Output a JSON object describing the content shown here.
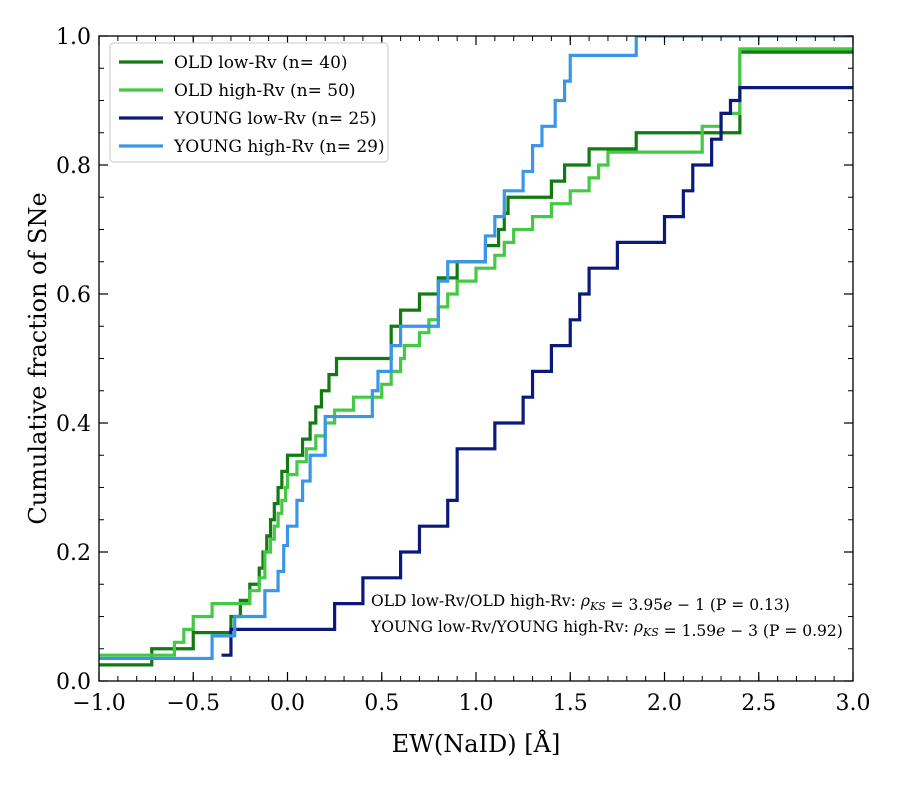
{
  "chart_data": {
    "type": "line",
    "xlabel": "EW(NaID) [Å]",
    "ylabel": "Cumulative fraction of SNe",
    "xlim": [
      -1.0,
      3.0
    ],
    "ylim": [
      0.0,
      1.0
    ],
    "xticks": [
      -1.0,
      -0.5,
      0.0,
      0.5,
      1.0,
      1.5,
      2.0,
      2.5,
      3.0
    ],
    "xtick_labels": [
      "−1.0",
      "−0.5",
      "0.0",
      "0.5",
      "1.0",
      "1.5",
      "2.0",
      "2.5",
      "3.0"
    ],
    "yticks": [
      0.0,
      0.2,
      0.4,
      0.6,
      0.8,
      1.0
    ],
    "ytick_labels": [
      "0.0",
      "0.2",
      "0.4",
      "0.6",
      "0.8",
      "1.0"
    ],
    "grid": false,
    "legend_position": "top-left",
    "series": [
      {
        "name": "OLD low-Rv (n= 40)",
        "color": "#117a11",
        "step_x": [
          -1.0,
          -0.72,
          -0.5,
          -0.3,
          -0.25,
          -0.2,
          -0.15,
          -0.13,
          -0.11,
          -0.09,
          -0.07,
          -0.05,
          -0.03,
          0.0,
          0.08,
          0.12,
          0.15,
          0.18,
          0.22,
          0.26,
          0.55,
          0.6,
          0.7,
          0.8,
          0.9,
          1.05,
          1.12,
          1.15,
          1.17,
          1.4,
          1.47,
          1.6,
          1.85,
          2.4
        ],
        "step_y": [
          0.025,
          0.05,
          0.075,
          0.1,
          0.125,
          0.15,
          0.175,
          0.2,
          0.225,
          0.25,
          0.275,
          0.3,
          0.325,
          0.35,
          0.375,
          0.4,
          0.425,
          0.45,
          0.475,
          0.5,
          0.55,
          0.575,
          0.6,
          0.625,
          0.65,
          0.675,
          0.7,
          0.725,
          0.75,
          0.775,
          0.8,
          0.825,
          0.85,
          0.875
        ],
        "y_end": 0.975
      },
      {
        "name": "OLD high-Rv (n= 50)",
        "color": "#44c944",
        "step_x": [
          -1.0,
          -0.6,
          -0.55,
          -0.5,
          -0.4,
          -0.2,
          -0.15,
          -0.12,
          -0.09,
          -0.07,
          -0.05,
          -0.03,
          -0.01,
          0.0,
          0.05,
          0.1,
          0.15,
          0.2,
          0.25,
          0.35,
          0.5,
          0.55,
          0.6,
          0.62,
          0.7,
          0.75,
          0.8,
          0.85,
          0.9,
          1.0,
          1.1,
          1.15,
          1.2,
          1.3,
          1.4,
          1.5,
          1.6,
          1.65,
          1.7,
          2.2,
          2.3,
          2.4
        ],
        "step_y": [
          0.04,
          0.06,
          0.08,
          0.1,
          0.12,
          0.14,
          0.16,
          0.2,
          0.22,
          0.24,
          0.26,
          0.28,
          0.3,
          0.32,
          0.34,
          0.36,
          0.38,
          0.4,
          0.42,
          0.44,
          0.46,
          0.48,
          0.5,
          0.52,
          0.54,
          0.56,
          0.58,
          0.6,
          0.62,
          0.64,
          0.66,
          0.68,
          0.7,
          0.72,
          0.74,
          0.76,
          0.78,
          0.8,
          0.82,
          0.86,
          0.88,
          0.9
        ],
        "y_end": 0.98
      },
      {
        "name": "YOUNG low-Rv (n= 25)",
        "color": "#0b1a7a",
        "step_x": [
          -0.35,
          -0.3,
          0.25,
          0.4,
          0.6,
          0.7,
          0.85,
          0.9,
          1.1,
          1.25,
          1.3,
          1.4,
          1.5,
          1.55,
          1.6,
          1.75,
          2.0,
          2.1,
          2.15,
          2.25,
          2.3,
          2.35,
          2.4,
          2.45,
          2.5
        ],
        "step_y": [
          0.04,
          0.08,
          0.12,
          0.16,
          0.2,
          0.24,
          0.28,
          0.36,
          0.4,
          0.44,
          0.48,
          0.52,
          0.56,
          0.6,
          0.64,
          0.68,
          0.72,
          0.76,
          0.8,
          0.84,
          0.88,
          0.9,
          0.92,
          0.92,
          0.92
        ],
        "y_end": 0.92
      },
      {
        "name": "YOUNG high-Rv (n= 29)",
        "color": "#3a96e6",
        "step_x": [
          -1.0,
          -0.4,
          -0.28,
          -0.12,
          -0.05,
          -0.02,
          0.0,
          0.05,
          0.08,
          0.12,
          0.2,
          0.45,
          0.48,
          0.55,
          0.6,
          0.8,
          0.85,
          1.05,
          1.1,
          1.15,
          1.25,
          1.3,
          1.35,
          1.42,
          1.47,
          1.5,
          1.6,
          1.75,
          1.85
        ],
        "step_y": [
          0.035,
          0.07,
          0.1,
          0.14,
          0.17,
          0.21,
          0.24,
          0.28,
          0.31,
          0.35,
          0.41,
          0.45,
          0.48,
          0.52,
          0.55,
          0.62,
          0.65,
          0.69,
          0.72,
          0.76,
          0.79,
          0.83,
          0.86,
          0.9,
          0.93,
          0.97,
          0.97,
          0.97,
          1.0
        ],
        "y_end": 1.0
      }
    ],
    "annotations": [
      {
        "segments": [
          {
            "text": "OLD low-Rv/OLD high-Rv:  ",
            "style": "normal"
          },
          {
            "text": "ρ",
            "style": "italic"
          },
          {
            "text": "KS",
            "style": "italic-sub"
          },
          {
            "text": " = 3.95",
            "style": "normal"
          },
          {
            "text": "e",
            "style": "italic"
          },
          {
            "text": " − 1  (P = 0.13)",
            "style": "normal"
          }
        ]
      },
      {
        "segments": [
          {
            "text": "YOUNG low-Rv/YOUNG high-Rv:  ",
            "style": "normal"
          },
          {
            "text": "ρ",
            "style": "italic"
          },
          {
            "text": "KS",
            "style": "italic-sub"
          },
          {
            "text": " = 1.59",
            "style": "normal"
          },
          {
            "text": "e",
            "style": "italic"
          },
          {
            "text": " − 3  (P = 0.92)",
            "style": "normal"
          }
        ]
      }
    ]
  }
}
